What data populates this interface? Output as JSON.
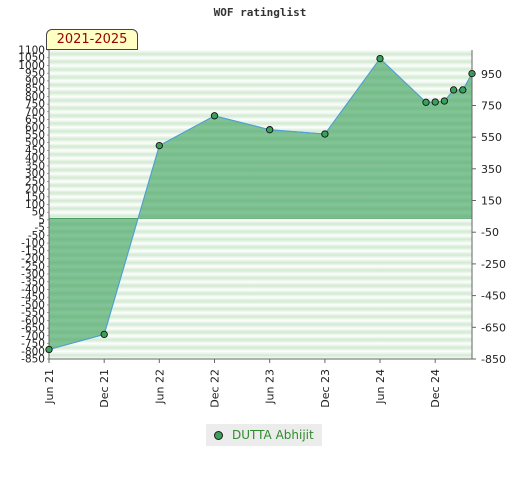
{
  "chart_data": {
    "type": "area",
    "title": "WOF ratinglist",
    "range_label": "2021-2025",
    "x_ticks": [
      "Jun 21",
      "Dec 21",
      "Jun 22",
      "Dec 22",
      "Jun 23",
      "Dec 23",
      "Jun 24",
      "Dec 24"
    ],
    "ylim": [
      -850,
      1100
    ],
    "y_left_ticks": [
      1100,
      1050,
      1000,
      950,
      900,
      850,
      800,
      750,
      700,
      650,
      600,
      550,
      500,
      450,
      400,
      350,
      300,
      250,
      200,
      150,
      100,
      50,
      5,
      -5,
      -50,
      -100,
      -150,
      -200,
      -250,
      -300,
      -350,
      -400,
      -450,
      -500,
      -550,
      -600,
      -650,
      -700,
      -750,
      -800,
      -850
    ],
    "y_right_ticks": [
      950,
      750,
      550,
      350,
      150,
      -50,
      -250,
      -450,
      -650,
      -850
    ],
    "series": [
      {
        "name": "DUTTA Abhijit",
        "color": "#3aa05a",
        "points": [
          {
            "x": "2021-06",
            "y": -790
          },
          {
            "x": "2021-12",
            "y": -695
          },
          {
            "x": "2022-06",
            "y": 497
          },
          {
            "x": "2022-12",
            "y": 685
          },
          {
            "x": "2023-06",
            "y": 597
          },
          {
            "x": "2023-12",
            "y": 570
          },
          {
            "x": "2024-06",
            "y": 1046
          },
          {
            "x": "2024-11",
            "y": 770
          },
          {
            "x": "2024-12",
            "y": 772
          },
          {
            "x": "2025-01",
            "y": 778
          },
          {
            "x": "2025-02",
            "y": 848
          },
          {
            "x": "2025-03",
            "y": 848
          },
          {
            "x": "2025-04",
            "y": 951
          }
        ]
      }
    ],
    "grid": true,
    "legend_position": "bottom"
  }
}
